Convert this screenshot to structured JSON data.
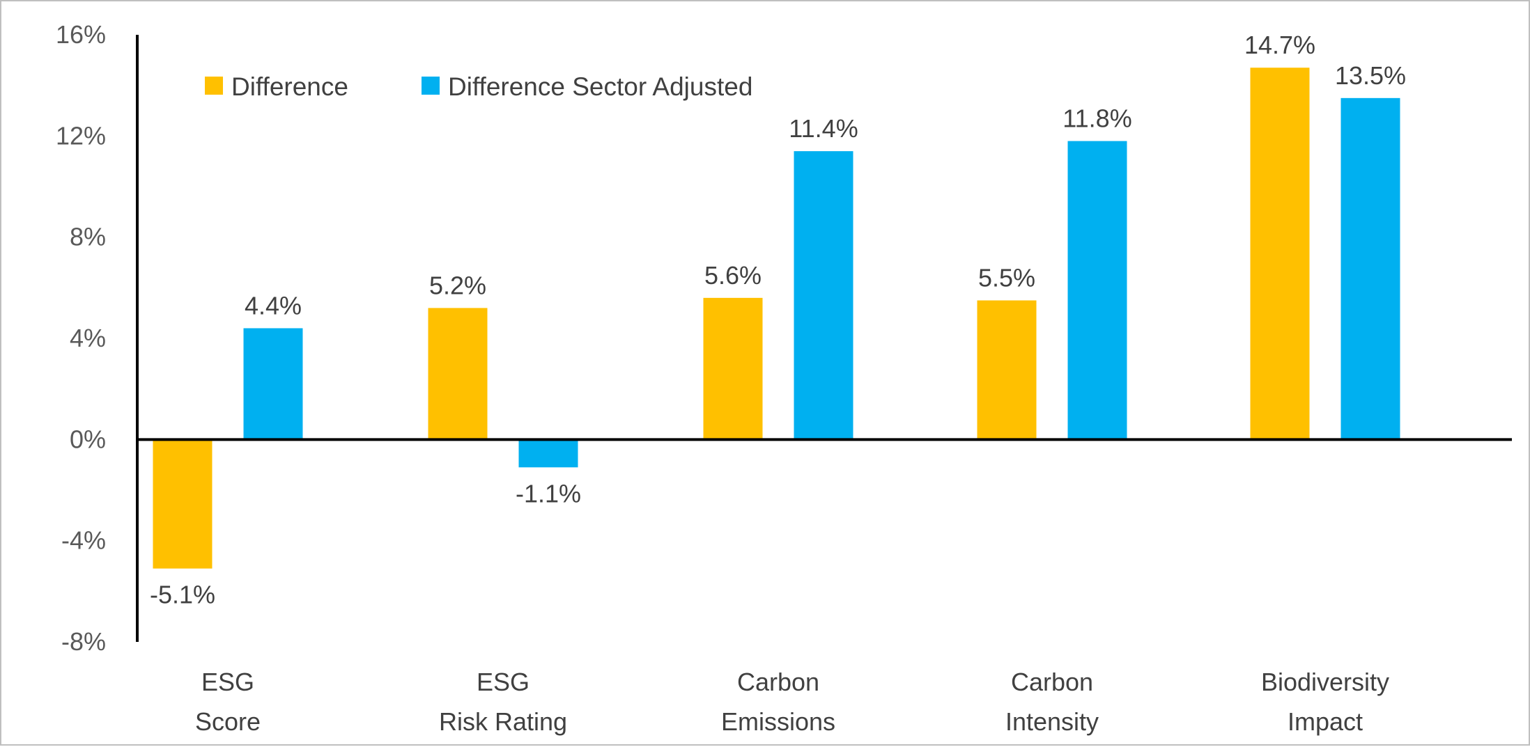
{
  "chart_data": {
    "type": "bar",
    "title": "",
    "xlabel": "",
    "ylabel": "",
    "categories": [
      [
        "ESG",
        "Score"
      ],
      [
        "ESG",
        "Risk Rating"
      ],
      [
        "Carbon",
        "Emissions"
      ],
      [
        "Carbon",
        "Intensity"
      ],
      [
        "Biodiversity",
        "Impact"
      ]
    ],
    "series": [
      {
        "name": "Difference",
        "color": "#FFC000",
        "values": [
          -5.1,
          5.2,
          5.6,
          5.5,
          14.7
        ],
        "labels": [
          "-5.1%",
          "5.2%",
          "5.6%",
          "5.5%",
          "14.7%"
        ]
      },
      {
        "name": "Difference Sector Adjusted",
        "color": "#00B0F0",
        "values": [
          4.4,
          -1.1,
          11.4,
          11.8,
          13.5
        ],
        "labels": [
          "4.4%",
          "-1.1%",
          "11.4%",
          "11.8%",
          "13.5%"
        ]
      }
    ],
    "ylim": [
      -8,
      16
    ],
    "yticks": [
      16,
      12,
      8,
      4,
      0,
      -4,
      -8
    ],
    "ytick_labels": [
      "16%",
      "12%",
      "8%",
      "4%",
      "0%",
      "-4%",
      "-8%"
    ],
    "grid": false,
    "legend_position": "top-left"
  }
}
